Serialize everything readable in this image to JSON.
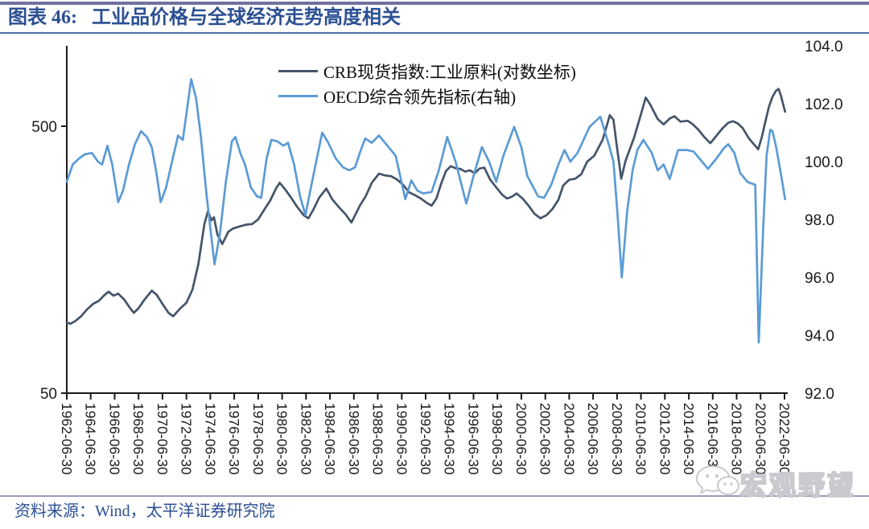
{
  "header": {
    "figure_label": "图表 46:",
    "title": "工业品价格与全球经济走势高度相关"
  },
  "footer": {
    "source": "资料来源：Wind，太平洋证券研究院"
  },
  "watermark": {
    "icon": "wechat-icon",
    "text": "宏观野望"
  },
  "colors": {
    "top_bar": "#71719E",
    "title_text": "#2B4F92",
    "title_underline": "#4C72A8",
    "separator": "#9C9CBE",
    "axis": "#1a1a1a",
    "crb_line": "#44546A",
    "oecd_line": "#5B9BD5",
    "watermark_gray": "#c9c9cf"
  },
  "chart_data": {
    "type": "line",
    "title": "",
    "grid": false,
    "legend_position": "top-center",
    "x_axis": {
      "tick_labels": [
        "1962-06-30",
        "1964-06-30",
        "1966-06-30",
        "1968-06-30",
        "1970-06-30",
        "1972-06-30",
        "1974-06-30",
        "1976-06-30",
        "1978-06-30",
        "1980-06-30",
        "1982-06-30",
        "1984-06-30",
        "1986-06-30",
        "1988-06-30",
        "1990-06-30",
        "1992-06-30",
        "1994-06-30",
        "1996-06-30",
        "1998-06-30",
        "2000-06-30",
        "2002-06-30",
        "2004-06-30",
        "2006-06-30",
        "2008-06-30",
        "2010-06-30",
        "2012-06-30",
        "2014-06-30",
        "2016-06-30",
        "2018-06-30",
        "2020-06-30",
        "2022-06-30"
      ],
      "start_year": 1962.5,
      "tick_step_years": 2,
      "label_rotation_deg": 90
    },
    "left_axis": {
      "scale": "log",
      "ticks": [
        {
          "label": "500",
          "value": 500
        },
        {
          "label": "50",
          "value": 50
        }
      ]
    },
    "right_axis": {
      "min": 92.0,
      "max": 104.0,
      "step": 2.0,
      "tick_labels": [
        "104.0",
        "102.0",
        "100.0",
        "98.0",
        "96.0",
        "94.0",
        "92.0"
      ]
    },
    "series": [
      {
        "name": "CRB现货指数:工业原料(对数坐标)",
        "axis": "left",
        "color": "#44546A",
        "points": [
          [
            1962.5,
            92
          ],
          [
            1962.8,
            91
          ],
          [
            1963.2,
            93
          ],
          [
            1963.7,
            97
          ],
          [
            1964.2,
            103
          ],
          [
            1964.7,
            108
          ],
          [
            1965.2,
            111
          ],
          [
            1965.6,
            116
          ],
          [
            1966.0,
            120
          ],
          [
            1966.4,
            116
          ],
          [
            1966.8,
            118
          ],
          [
            1967.3,
            112
          ],
          [
            1967.8,
            104
          ],
          [
            1968.1,
            100
          ],
          [
            1968.5,
            104
          ],
          [
            1969.0,
            112
          ],
          [
            1969.6,
            121
          ],
          [
            1970.0,
            117
          ],
          [
            1970.5,
            108
          ],
          [
            1971.0,
            100
          ],
          [
            1971.4,
            97
          ],
          [
            1972.0,
            104
          ],
          [
            1972.5,
            109
          ],
          [
            1973.0,
            122
          ],
          [
            1973.5,
            152
          ],
          [
            1974.0,
            215
          ],
          [
            1974.3,
            240
          ],
          [
            1974.6,
            222
          ],
          [
            1974.8,
            228
          ],
          [
            1975.1,
            196
          ],
          [
            1975.5,
            181
          ],
          [
            1976.0,
            201
          ],
          [
            1976.4,
            207
          ],
          [
            1977.0,
            211
          ],
          [
            1977.5,
            214
          ],
          [
            1978.0,
            215
          ],
          [
            1978.5,
            224
          ],
          [
            1979.0,
            243
          ],
          [
            1979.5,
            263
          ],
          [
            1980.0,
            293
          ],
          [
            1980.3,
            307
          ],
          [
            1980.8,
            288
          ],
          [
            1981.2,
            272
          ],
          [
            1981.8,
            248
          ],
          [
            1982.3,
            232
          ],
          [
            1982.7,
            226
          ],
          [
            1983.1,
            243
          ],
          [
            1983.6,
            270
          ],
          [
            1984.2,
            292
          ],
          [
            1984.7,
            266
          ],
          [
            1985.2,
            250
          ],
          [
            1985.8,
            234
          ],
          [
            1986.3,
            218
          ],
          [
            1987.0,
            252
          ],
          [
            1987.5,
            274
          ],
          [
            1988.0,
            307
          ],
          [
            1988.6,
            332
          ],
          [
            1989.1,
            327
          ],
          [
            1989.6,
            325
          ],
          [
            1990.1,
            316
          ],
          [
            1990.6,
            302
          ],
          [
            1991.1,
            283
          ],
          [
            1991.6,
            276
          ],
          [
            1992.1,
            268
          ],
          [
            1992.6,
            258
          ],
          [
            1993.0,
            252
          ],
          [
            1993.4,
            268
          ],
          [
            1993.8,
            305
          ],
          [
            1994.2,
            340
          ],
          [
            1994.6,
            354
          ],
          [
            1995.0,
            348
          ],
          [
            1995.4,
            346
          ],
          [
            1995.8,
            338
          ],
          [
            1996.2,
            342
          ],
          [
            1996.6,
            333
          ],
          [
            1997.0,
            347
          ],
          [
            1997.4,
            350
          ],
          [
            1997.9,
            315
          ],
          [
            1998.4,
            295
          ],
          [
            1998.9,
            277
          ],
          [
            1999.3,
            268
          ],
          [
            1999.7,
            272
          ],
          [
            2000.1,
            280
          ],
          [
            2000.6,
            268
          ],
          [
            2001.1,
            252
          ],
          [
            2001.6,
            235
          ],
          [
            2002.1,
            226
          ],
          [
            2002.6,
            232
          ],
          [
            2003.1,
            245
          ],
          [
            2003.6,
            265
          ],
          [
            2004.0,
            300
          ],
          [
            2004.5,
            315
          ],
          [
            2005.0,
            318
          ],
          [
            2005.5,
            330
          ],
          [
            2006.0,
            368
          ],
          [
            2006.6,
            388
          ],
          [
            2007.3,
            445
          ],
          [
            2007.9,
            550
          ],
          [
            2008.2,
            528
          ],
          [
            2008.5,
            415
          ],
          [
            2008.85,
            318
          ],
          [
            2009.2,
            370
          ],
          [
            2009.9,
            450
          ],
          [
            2010.4,
            535
          ],
          [
            2010.9,
            640
          ],
          [
            2011.3,
            600
          ],
          [
            2011.9,
            532
          ],
          [
            2012.4,
            508
          ],
          [
            2012.9,
            534
          ],
          [
            2013.3,
            545
          ],
          [
            2013.8,
            520
          ],
          [
            2014.4,
            524
          ],
          [
            2014.8,
            510
          ],
          [
            2015.3,
            485
          ],
          [
            2015.8,
            455
          ],
          [
            2016.3,
            432
          ],
          [
            2016.8,
            460
          ],
          [
            2017.3,
            490
          ],
          [
            2017.8,
            515
          ],
          [
            2018.2,
            522
          ],
          [
            2018.6,
            512
          ],
          [
            2019.0,
            492
          ],
          [
            2019.5,
            452
          ],
          [
            2019.9,
            430
          ],
          [
            2020.3,
            410
          ],
          [
            2020.6,
            455
          ],
          [
            2020.9,
            520
          ],
          [
            2021.2,
            592
          ],
          [
            2021.5,
            645
          ],
          [
            2021.8,
            680
          ],
          [
            2022.0,
            690
          ],
          [
            2022.2,
            652
          ],
          [
            2022.35,
            612
          ],
          [
            2022.55,
            567
          ]
        ]
      },
      {
        "name": "OECD综合领先指标(右轴)",
        "axis": "right",
        "color": "#5B9BD5",
        "points": [
          [
            1962.5,
            99.3
          ],
          [
            1963.0,
            99.9
          ],
          [
            1963.5,
            100.1
          ],
          [
            1964.0,
            100.25
          ],
          [
            1964.6,
            100.3
          ],
          [
            1965.1,
            100.0
          ],
          [
            1965.45,
            99.9
          ],
          [
            1965.9,
            100.55
          ],
          [
            1966.3,
            99.9
          ],
          [
            1966.8,
            98.6
          ],
          [
            1967.2,
            99.0
          ],
          [
            1967.7,
            99.9
          ],
          [
            1968.2,
            100.6
          ],
          [
            1968.7,
            101.05
          ],
          [
            1969.2,
            100.85
          ],
          [
            1969.6,
            100.5
          ],
          [
            1970.0,
            99.6
          ],
          [
            1970.35,
            98.6
          ],
          [
            1970.8,
            99.1
          ],
          [
            1971.3,
            100.0
          ],
          [
            1971.8,
            100.9
          ],
          [
            1972.2,
            100.75
          ],
          [
            1972.9,
            102.85
          ],
          [
            1973.3,
            102.2
          ],
          [
            1973.7,
            100.9
          ],
          [
            1974.2,
            98.8
          ],
          [
            1974.85,
            96.45
          ],
          [
            1975.3,
            97.5
          ],
          [
            1975.8,
            99.3
          ],
          [
            1976.3,
            100.7
          ],
          [
            1976.6,
            100.85
          ],
          [
            1977.0,
            100.3
          ],
          [
            1977.4,
            99.9
          ],
          [
            1977.9,
            99.1
          ],
          [
            1978.4,
            98.8
          ],
          [
            1978.75,
            98.75
          ],
          [
            1979.2,
            100.1
          ],
          [
            1979.6,
            100.75
          ],
          [
            1980.1,
            100.7
          ],
          [
            1980.6,
            100.55
          ],
          [
            1981.0,
            100.65
          ],
          [
            1981.5,
            99.9
          ],
          [
            1982.0,
            98.8
          ],
          [
            1982.45,
            98.15
          ],
          [
            1983.0,
            99.3
          ],
          [
            1983.85,
            101.0
          ],
          [
            1984.3,
            100.7
          ],
          [
            1985.0,
            100.1
          ],
          [
            1985.6,
            99.8
          ],
          [
            1986.1,
            99.7
          ],
          [
            1986.6,
            99.8
          ],
          [
            1987.0,
            100.3
          ],
          [
            1987.45,
            100.8
          ],
          [
            1988.0,
            100.65
          ],
          [
            1988.6,
            100.9
          ],
          [
            1989.2,
            100.6
          ],
          [
            1990.0,
            100.2
          ],
          [
            1990.8,
            98.7
          ],
          [
            1991.3,
            99.35
          ],
          [
            1991.8,
            99.0
          ],
          [
            1992.3,
            98.9
          ],
          [
            1993.0,
            98.95
          ],
          [
            1993.6,
            99.7
          ],
          [
            1994.3,
            100.85
          ],
          [
            1995.0,
            100.0
          ],
          [
            1995.9,
            98.55
          ],
          [
            1996.5,
            99.5
          ],
          [
            1997.2,
            100.5
          ],
          [
            1997.8,
            100.0
          ],
          [
            1998.4,
            99.3
          ],
          [
            1999.0,
            100.2
          ],
          [
            1999.9,
            101.2
          ],
          [
            2000.5,
            100.5
          ],
          [
            2001.0,
            99.5
          ],
          [
            2001.9,
            98.8
          ],
          [
            2002.4,
            98.75
          ],
          [
            2003.0,
            99.2
          ],
          [
            2003.6,
            99.9
          ],
          [
            2004.1,
            100.4
          ],
          [
            2004.6,
            100.0
          ],
          [
            2005.2,
            100.3
          ],
          [
            2006.2,
            101.2
          ],
          [
            2007.1,
            101.55
          ],
          [
            2007.8,
            100.6
          ],
          [
            2008.2,
            100.0
          ],
          [
            2008.5,
            98.4
          ],
          [
            2008.9,
            96.0
          ],
          [
            2009.35,
            98.3
          ],
          [
            2009.8,
            99.7
          ],
          [
            2010.2,
            100.4
          ],
          [
            2010.7,
            100.75
          ],
          [
            2011.4,
            100.3
          ],
          [
            2011.9,
            99.7
          ],
          [
            2012.4,
            99.9
          ],
          [
            2012.9,
            99.4
          ],
          [
            2013.6,
            100.4
          ],
          [
            2014.3,
            100.4
          ],
          [
            2014.9,
            100.35
          ],
          [
            2015.4,
            100.1
          ],
          [
            2016.1,
            99.75
          ],
          [
            2016.8,
            100.1
          ],
          [
            2017.4,
            100.45
          ],
          [
            2017.8,
            100.6
          ],
          [
            2018.3,
            100.3
          ],
          [
            2018.8,
            99.6
          ],
          [
            2019.4,
            99.3
          ],
          [
            2019.7,
            99.25
          ],
          [
            2020.05,
            99.2
          ],
          [
            2020.35,
            93.75
          ],
          [
            2020.7,
            97.5
          ],
          [
            2021.0,
            100.2
          ],
          [
            2021.3,
            101.1
          ],
          [
            2021.5,
            101.05
          ],
          [
            2021.8,
            100.5
          ],
          [
            2022.1,
            99.8
          ],
          [
            2022.35,
            99.2
          ],
          [
            2022.55,
            98.7
          ]
        ]
      }
    ]
  }
}
